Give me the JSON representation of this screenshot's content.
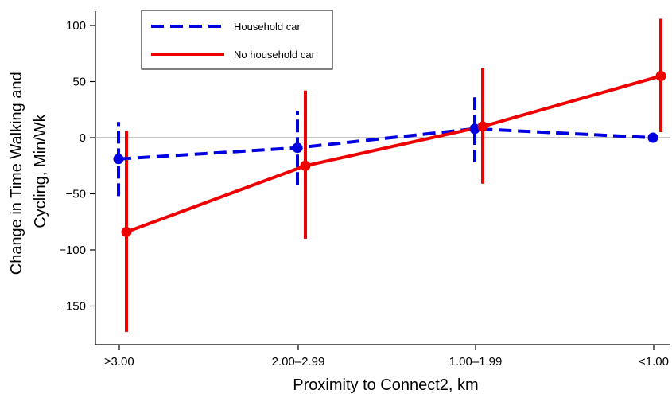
{
  "chart_data": {
    "type": "line",
    "title": "",
    "xlabel": "Proximity to Connect2, km",
    "ylabel_lines": [
      "Change in Time Walking and",
      "Cycling, Min/Wk"
    ],
    "categories": [
      "≥3.00",
      "2.00–2.99",
      "1.00–1.99",
      "<1.00"
    ],
    "ylim": [
      -180,
      110
    ],
    "yticks": [
      100,
      50,
      0,
      -50,
      -100,
      -150
    ],
    "ytick_labels": [
      "100",
      "50",
      "0",
      "−50",
      "−100",
      "−150"
    ],
    "grid": false,
    "reference_line_y": 0,
    "legend_position": "top-left",
    "series": [
      {
        "name": "Household car",
        "color": "#0000e0",
        "line_style": "dashed",
        "values": [
          -19,
          -9,
          8,
          0
        ],
        "ci_low": [
          -52,
          -42,
          -22,
          0
        ],
        "ci_high": [
          14,
          24,
          36,
          0
        ]
      },
      {
        "name": "No household car",
        "color": "#ee0000",
        "line_style": "solid",
        "values": [
          -84,
          -25,
          10,
          55
        ],
        "ci_low": [
          -173,
          -90,
          -41,
          5
        ],
        "ci_high": [
          6,
          42,
          62,
          106
        ]
      }
    ]
  }
}
